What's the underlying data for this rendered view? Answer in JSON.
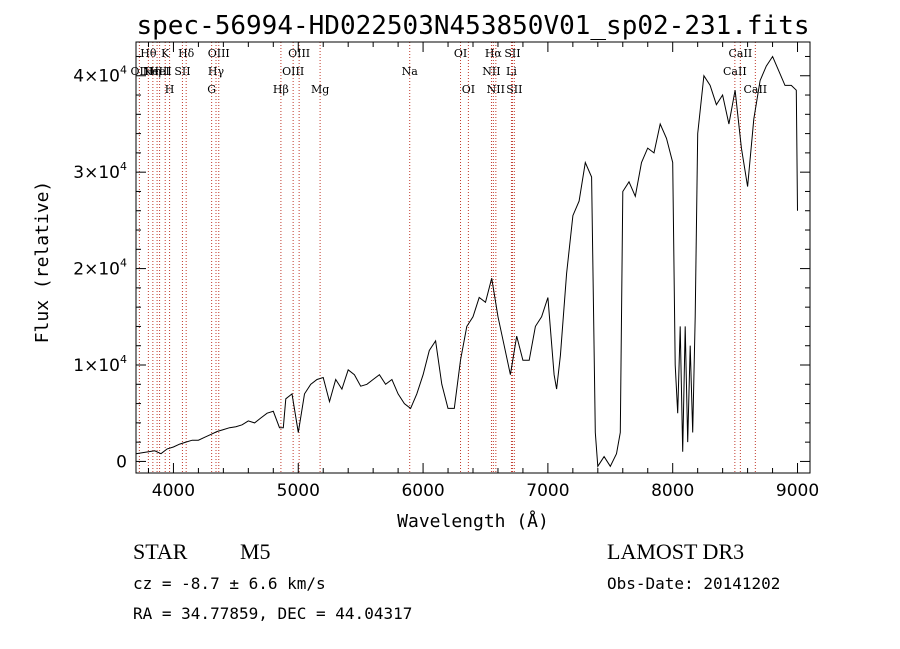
{
  "chart_data": {
    "type": "line",
    "title": "spec-56994-HD022503N453850V01_sp02-231.fits",
    "xlabel": "Wavelength (Å)",
    "ylabel": "Flux (relative)",
    "xlim": [
      3700,
      9100
    ],
    "ylim": [
      -1200,
      43500
    ],
    "x_ticks": [
      4000,
      5000,
      6000,
      7000,
      8000,
      9000
    ],
    "x_tick_labels": [
      "4000",
      "5000",
      "6000",
      "7000",
      "8000",
      "9000"
    ],
    "y_ticks": [
      0,
      10000,
      20000,
      30000,
      40000
    ],
    "y_tick_labels": [
      {
        "mantissa": "0",
        "exp": ""
      },
      {
        "mantissa": "1×10",
        "exp": "4"
      },
      {
        "mantissa": "2×10",
        "exp": "4"
      },
      {
        "mantissa": "3×10",
        "exp": "4"
      },
      {
        "mantissa": "4×10",
        "exp": "4"
      }
    ],
    "grid": false,
    "series": [
      {
        "name": "spectrum",
        "x": [
          3700,
          3750,
          3800,
          3850,
          3900,
          3950,
          4000,
          4050,
          4100,
          4150,
          4200,
          4250,
          4300,
          4350,
          4400,
          4450,
          4500,
          4550,
          4600,
          4650,
          4700,
          4750,
          4800,
          4850,
          4880,
          4900,
          4950,
          5000,
          5050,
          5100,
          5150,
          5200,
          5250,
          5300,
          5350,
          5400,
          5450,
          5500,
          5550,
          5600,
          5650,
          5700,
          5750,
          5800,
          5850,
          5900,
          5950,
          6000,
          6050,
          6100,
          6150,
          6200,
          6250,
          6300,
          6350,
          6400,
          6450,
          6500,
          6550,
          6600,
          6650,
          6700,
          6750,
          6800,
          6850,
          6900,
          6950,
          7000,
          7050,
          7070,
          7100,
          7150,
          7200,
          7250,
          7300,
          7350,
          7380,
          7400,
          7450,
          7500,
          7550,
          7580,
          7600,
          7650,
          7700,
          7750,
          7800,
          7850,
          7900,
          7950,
          8000,
          8020,
          8040,
          8060,
          8080,
          8100,
          8120,
          8140,
          8160,
          8180,
          8200,
          8250,
          8300,
          8350,
          8400,
          8450,
          8500,
          8550,
          8600,
          8650,
          8700,
          8750,
          8800,
          8850,
          8900,
          8950,
          8990,
          9000
        ],
        "y": [
          800,
          900,
          1000,
          1100,
          800,
          1300,
          1500,
          1800,
          2000,
          2200,
          2200,
          2500,
          2800,
          3100,
          3300,
          3500,
          3600,
          3800,
          4200,
          4000,
          4500,
          5000,
          5200,
          3500,
          3500,
          6500,
          7000,
          3000,
          7000,
          8000,
          8500,
          8700,
          6200,
          8500,
          7500,
          9500,
          9000,
          7800,
          8000,
          8500,
          9000,
          8000,
          8500,
          7000,
          6000,
          5500,
          7000,
          9000,
          11500,
          12500,
          8000,
          5500,
          5500,
          10500,
          14000,
          15000,
          17000,
          16500,
          19000,
          15000,
          12000,
          9000,
          13000,
          10500,
          10500,
          14000,
          15000,
          17000,
          9000,
          7500,
          11000,
          19500,
          25500,
          27000,
          31000,
          29500,
          3000,
          -500,
          500,
          -500,
          800,
          3000,
          28000,
          29000,
          27500,
          31000,
          32500,
          32000,
          35000,
          33500,
          31000,
          10000,
          5000,
          14000,
          1000,
          14000,
          2000,
          12000,
          3000,
          15000,
          34000,
          40000,
          39000,
          37000,
          38000,
          35000,
          38500,
          32500,
          28500,
          35500,
          39500,
          41000,
          42000,
          40500,
          39000,
          39000,
          38500,
          26000
        ]
      }
    ],
    "lines": [
      {
        "wl": 3727,
        "label": "OII",
        "row": 1
      },
      {
        "wl": 3799,
        "label": "Hθ",
        "row": 0
      },
      {
        "wl": 3835,
        "label": "Hη",
        "row": 1
      },
      {
        "wl": 3869,
        "label": "NeIII",
        "row": 1
      },
      {
        "wl": 3889,
        "label": "HeI",
        "row": 1
      },
      {
        "wl": 3934,
        "label": "K",
        "row": 0
      },
      {
        "wl": 3969,
        "label": "H",
        "row": 2
      },
      {
        "wl": 4072,
        "label": "SII",
        "row": 1
      },
      {
        "wl": 4102,
        "label": "Hδ",
        "row": 0
      },
      {
        "wl": 4306,
        "label": "G",
        "row": 2
      },
      {
        "wl": 4341,
        "label": "Hγ",
        "row": 1
      },
      {
        "wl": 4363,
        "label": "OIII",
        "row": 0
      },
      {
        "wl": 4861,
        "label": "Hβ",
        "row": 2
      },
      {
        "wl": 4959,
        "label": "OIII",
        "row": 1
      },
      {
        "wl": 5007,
        "label": "OIII",
        "row": 0
      },
      {
        "wl": 5175,
        "label": "Mg",
        "row": 2
      },
      {
        "wl": 5893,
        "label": "Na",
        "row": 1
      },
      {
        "wl": 6300,
        "label": "OI",
        "row": 0
      },
      {
        "wl": 6363,
        "label": "OI",
        "row": 2
      },
      {
        "wl": 6548,
        "label": "NII",
        "row": 1
      },
      {
        "wl": 6563,
        "label": "Hα",
        "row": 0
      },
      {
        "wl": 6583,
        "label": "NII",
        "row": 2
      },
      {
        "wl": 6708,
        "label": "Li",
        "row": 1
      },
      {
        "wl": 6716,
        "label": "SII",
        "row": 0
      },
      {
        "wl": 6731,
        "label": "SII",
        "row": 2
      },
      {
        "wl": 8498,
        "label": "CaII",
        "row": 1
      },
      {
        "wl": 8542,
        "label": "CaII",
        "row": 0
      },
      {
        "wl": 8662,
        "label": "CaII",
        "row": 2
      }
    ]
  },
  "info": {
    "object_type": "STAR",
    "subclass": "M5",
    "survey": "LAMOST DR3",
    "cz": "cz = -8.7 ± 6.6 km/s",
    "obs_date": "Obs-Date: 20141202",
    "coords": "RA =  34.77859, DEC =  44.04317"
  }
}
